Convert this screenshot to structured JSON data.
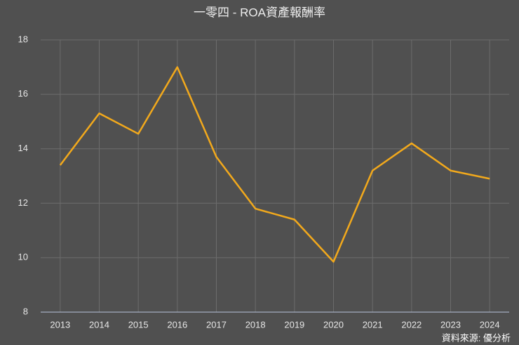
{
  "chart_data": {
    "type": "line",
    "title": "一零四 - ROA資產報酬率",
    "categories": [
      "2013",
      "2014",
      "2015",
      "2016",
      "2017",
      "2018",
      "2019",
      "2020",
      "2021",
      "2022",
      "2023",
      "2024"
    ],
    "series": [
      {
        "name": "ROA",
        "color": "#f2a91c",
        "values": [
          13.4,
          15.3,
          14.55,
          17.0,
          13.7,
          11.8,
          11.4,
          9.85,
          13.2,
          14.2,
          13.2,
          12.9
        ]
      }
    ],
    "ylim": [
      8,
      18
    ],
    "yticks": [
      8,
      10,
      12,
      14,
      16,
      18
    ],
    "grid": true,
    "source": "資料來源: 優分析"
  }
}
